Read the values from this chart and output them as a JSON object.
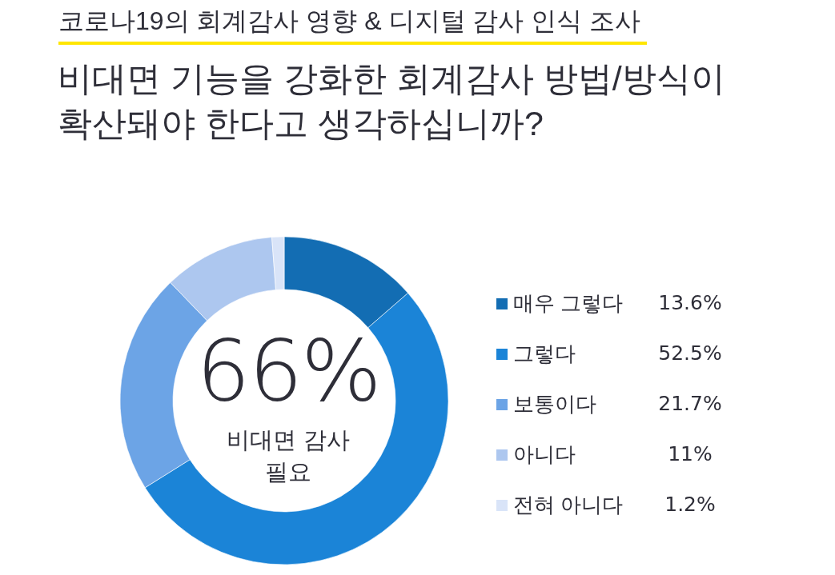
{
  "chart_data": {
    "type": "donut",
    "title": "코로나19의 회계감사 영향 & 디지털 감사 인식 조사",
    "subtitle": "비대면 기능을 강화한 회계감사 방법/방식이 확산돼야 한다고 생각하십니까?",
    "categories": [
      "매우 그렇다",
      "그렇다",
      "보통이다",
      "아니다",
      "전혀 아니다"
    ],
    "values": [
      13.6,
      52.5,
      21.7,
      11,
      1.2
    ],
    "colors": [
      "#136db3",
      "#1b84d7",
      "#6ca4e6",
      "#adc7ef",
      "#d9e4f8"
    ],
    "value_labels": [
      "13.6%",
      "52.5%",
      "21.7%",
      "11%",
      "1.2%"
    ],
    "legend": "right",
    "annotations": [
      "66%",
      "비대면 감사 필요"
    ]
  }
}
